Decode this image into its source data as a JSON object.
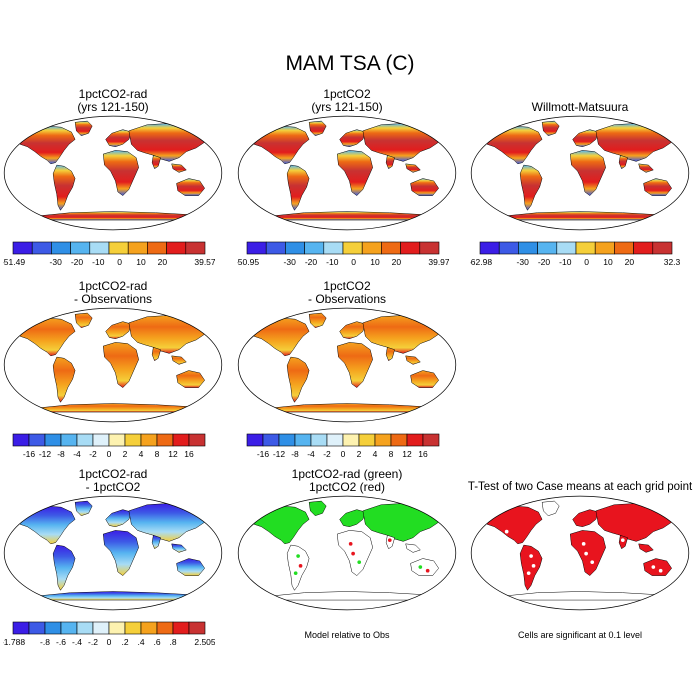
{
  "figure": {
    "title": "MAM TSA (C)",
    "panels": [
      {
        "id": "p1",
        "title1": "1pctCO2-rad",
        "title2": "(yrs 121-150)",
        "style": "abs",
        "cbar": "abs1"
      },
      {
        "id": "p2",
        "title1": "1pctCO2",
        "title2": "(yrs 121-150)",
        "style": "abs",
        "cbar": "abs2"
      },
      {
        "id": "p3",
        "title1": "Willmott-Matsuura",
        "title2": "",
        "style": "abs",
        "cbar": "abs3"
      },
      {
        "id": "p4",
        "title1": "1pctCO2-rad",
        "title2": "- Observations",
        "style": "diffobs",
        "cbar": "diff1"
      },
      {
        "id": "p5",
        "title1": "1pctCO2",
        "title2": "- Observations",
        "style": "diffobs",
        "cbar": "diff2"
      },
      {
        "id": "p6",
        "title1": "1pctCO2-rad",
        "title2": "- 1pctCO2",
        "style": "diffcase",
        "cbar": "small"
      },
      {
        "id": "p7",
        "title1": "1pctCO2-rad (green)",
        "title2": "1pctCO2 (red)",
        "style": "greenred",
        "cbar": null,
        "note": "Model relative to Obs"
      },
      {
        "id": "p8",
        "title1": "T-Test of two Case means at each grid point",
        "title2": "",
        "style": "ttest",
        "cbar": null,
        "note": "Cells are significant at 0.1 level"
      }
    ]
  },
  "colorbars": {
    "abs1": {
      "labels": [
        "-51.49",
        "",
        "-30",
        "-20",
        "-10",
        "0",
        "10",
        "20",
        "",
        "39.57"
      ]
    },
    "abs2": {
      "labels": [
        "-50.95",
        "",
        "-30",
        "-20",
        "-10",
        "0",
        "10",
        "20",
        "",
        "39.97"
      ]
    },
    "abs3": {
      "labels": [
        "-62.98",
        "",
        "-30",
        "-20",
        "-10",
        "0",
        "10",
        "20",
        "",
        "32.3"
      ]
    },
    "diff1": {
      "labels": [
        "",
        "-16",
        "-12",
        "-8",
        "-4",
        "-2",
        "0",
        "2",
        "4",
        "8",
        "12",
        "16",
        ""
      ]
    },
    "diff2": {
      "labels": [
        "",
        "-16",
        "-12",
        "-8",
        "-4",
        "-2",
        "0",
        "2",
        "4",
        "8",
        "12",
        "16",
        ""
      ]
    },
    "small": {
      "labels": [
        "-1.788",
        "",
        "-.8",
        "-.6",
        "-.4",
        "-.2",
        "0",
        ".2",
        ".4",
        ".6",
        ".8",
        "",
        "2.505"
      ]
    }
  },
  "palettes": {
    "abs": [
      "#3b1ee6",
      "#3d5ae6",
      "#2f8fe6",
      "#56b4f0",
      "#a8dcf5",
      "#f5cf3a",
      "#f5a21e",
      "#ee6a14",
      "#e21d1d",
      "#c83232"
    ],
    "diff": [
      "#3b1ee6",
      "#3d5ae6",
      "#2f8fe6",
      "#56b4f0",
      "#a8dcf5",
      "#dff1fa",
      "#fdf2b0",
      "#f5cf3a",
      "#f5a21e",
      "#ee6a14",
      "#e21d1d",
      "#c83232"
    ],
    "small": [
      "#3b1ee6",
      "#3d5ae6",
      "#2f8fe6",
      "#56b4f0",
      "#a8dcf5",
      "#dff1fa",
      "#fdf2b0",
      "#f5cf3a",
      "#f5a21e",
      "#ee6a14",
      "#e21d1d",
      "#c83232"
    ]
  }
}
